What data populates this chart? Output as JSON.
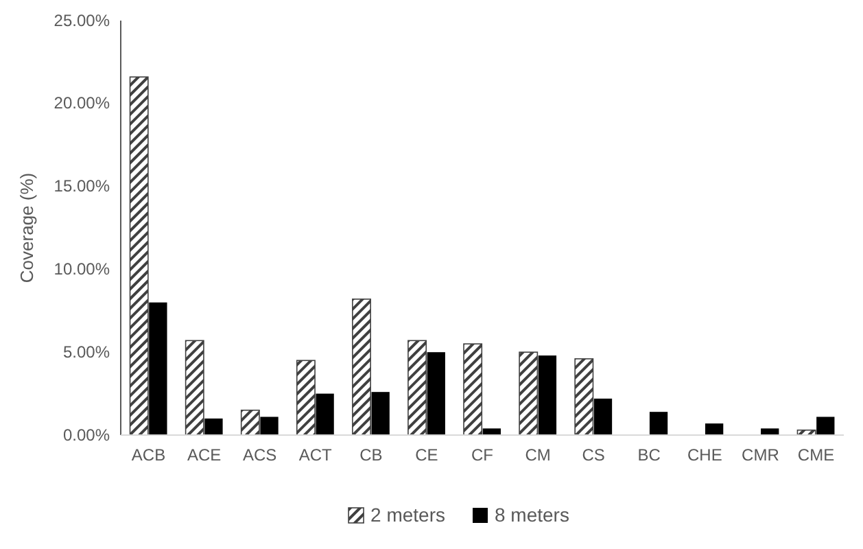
{
  "chart_data": {
    "type": "bar",
    "ylabel": "Coverage (%)",
    "categories": [
      "ACB",
      "ACE",
      "ACS",
      "ACT",
      "CB",
      "CE",
      "CF",
      "CM",
      "CS",
      "BC",
      "CHE",
      "CMR",
      "CME"
    ],
    "series": [
      {
        "name": "2 meters",
        "color": "#404040",
        "values": [
          21.6,
          5.7,
          1.5,
          4.5,
          8.2,
          5.7,
          5.5,
          5.0,
          4.6,
          0,
          0,
          0,
          0.3
        ]
      },
      {
        "name": "8 meters",
        "color": "#000000",
        "values": [
          8.0,
          1.0,
          1.1,
          2.5,
          2.6,
          5.0,
          0.4,
          4.8,
          2.2,
          1.4,
          0.7,
          0.4,
          1.1
        ]
      }
    ],
    "ylim": [
      0,
      25
    ],
    "yticks": [
      {
        "value": 0,
        "label": "0.00%"
      },
      {
        "value": 5,
        "label": "5.00%"
      },
      {
        "value": 10,
        "label": "10.00%"
      },
      {
        "value": 15,
        "label": "15.00%"
      },
      {
        "value": 20,
        "label": "20.00%"
      },
      {
        "value": 25,
        "label": "25.00%"
      }
    ],
    "grid": false,
    "legend": "bottom"
  }
}
